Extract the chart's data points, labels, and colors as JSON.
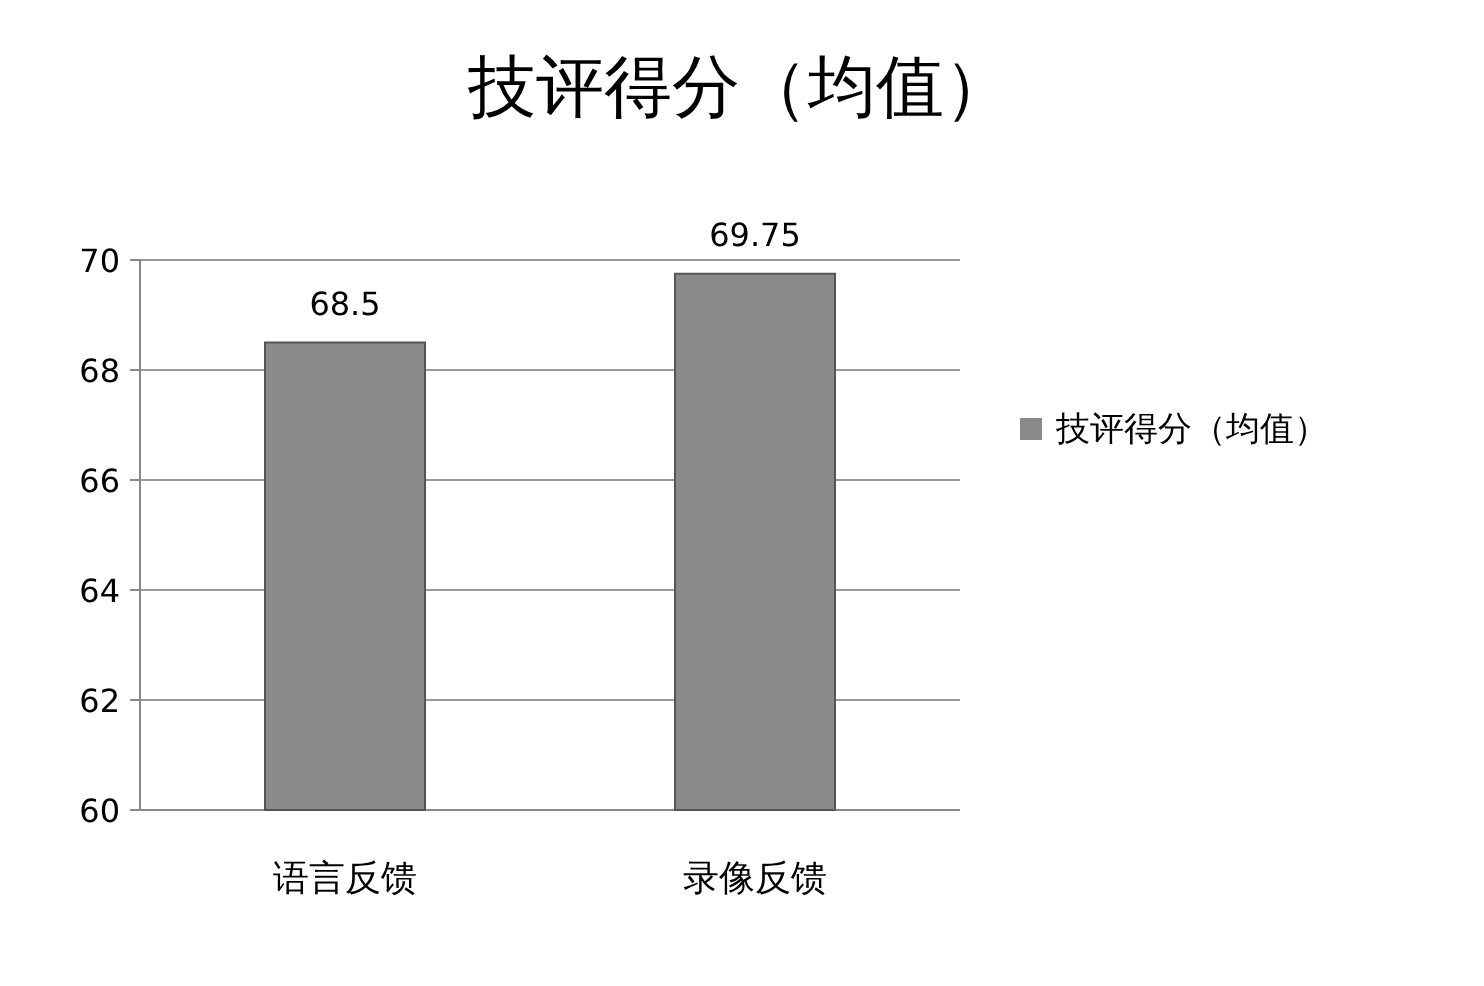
{
  "chart_data": {
    "type": "bar",
    "title": "技评得分（均值）",
    "categories": [
      "语言反馈",
      "录像反馈"
    ],
    "series": [
      {
        "name": "技评得分（均值）",
        "color": "#8a8a8a",
        "values": [
          68.5,
          69.75
        ]
      }
    ],
    "ylim": [
      60,
      70
    ],
    "yticks": [
      60,
      62,
      64,
      66,
      68,
      70
    ],
    "grid": "y",
    "legend": "right",
    "data_labels": true
  }
}
